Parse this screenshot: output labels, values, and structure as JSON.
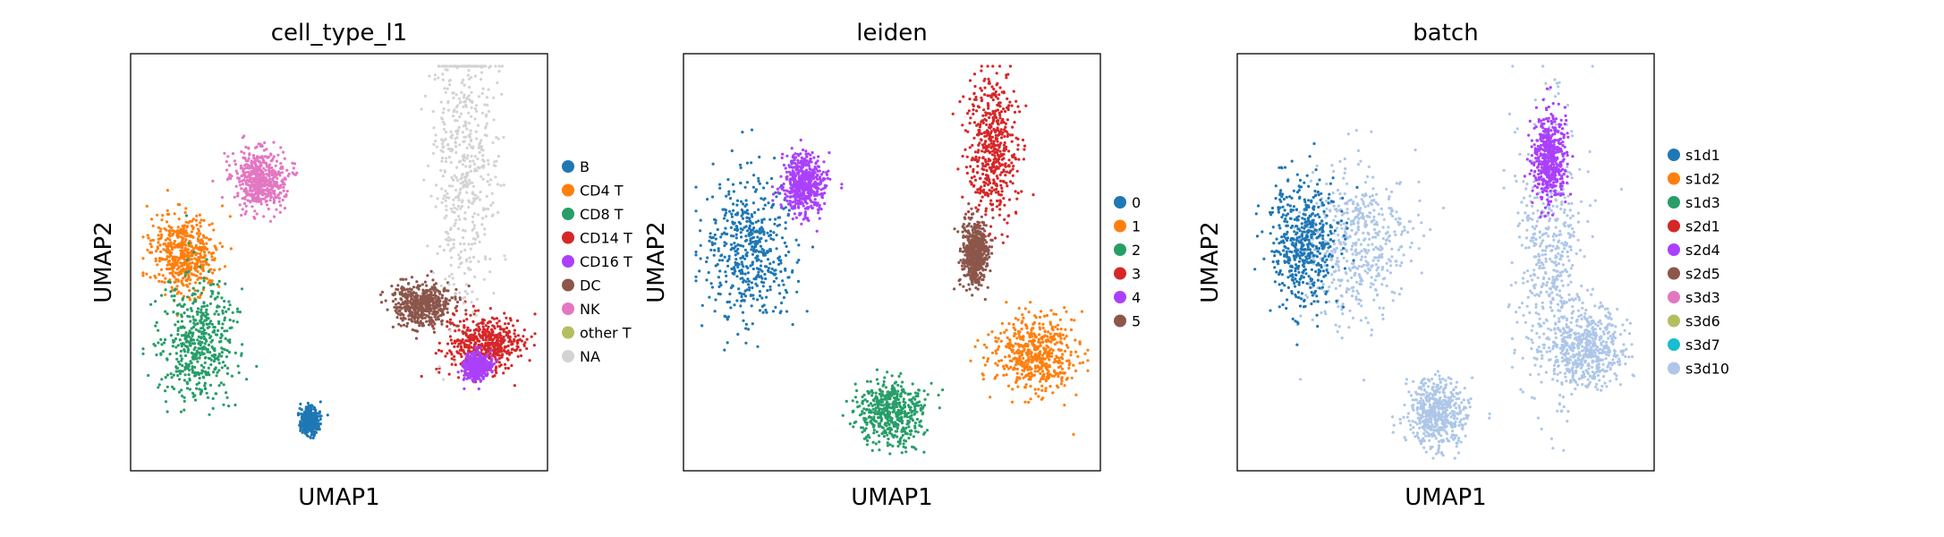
{
  "panels": [
    {
      "title": "cell_type_l1",
      "xlabel": "UMAP1",
      "ylabel": "UMAP2",
      "legend": [
        {
          "label": "B",
          "color": "#1f77b4"
        },
        {
          "label": "CD4 T",
          "color": "#ff7f0e"
        },
        {
          "label": "CD8 T",
          "color": "#279e68"
        },
        {
          "label": "CD14 T",
          "color": "#d62728"
        },
        {
          "label": "CD16 T",
          "color": "#aa40fc"
        },
        {
          "label": "DC",
          "color": "#8c564b"
        },
        {
          "label": "NK",
          "color": "#e377c2"
        },
        {
          "label": "other T",
          "color": "#b5bd61"
        },
        {
          "label": "NA",
          "color": "#d3d3d3"
        }
      ]
    },
    {
      "title": "leiden",
      "xlabel": "UMAP1",
      "ylabel": "UMAP2",
      "legend": [
        {
          "label": "0",
          "color": "#1f77b4"
        },
        {
          "label": "1",
          "color": "#ff7f0e"
        },
        {
          "label": "2",
          "color": "#279e68"
        },
        {
          "label": "3",
          "color": "#d62728"
        },
        {
          "label": "4",
          "color": "#aa40fc"
        },
        {
          "label": "5",
          "color": "#8c564b"
        }
      ]
    },
    {
      "title": "batch",
      "xlabel": "UMAP1",
      "ylabel": "UMAP2",
      "legend": [
        {
          "label": "s1d1",
          "color": "#1f77b4"
        },
        {
          "label": "s1d2",
          "color": "#ff7f0e"
        },
        {
          "label": "s1d3",
          "color": "#279e68"
        },
        {
          "label": "s2d1",
          "color": "#d62728"
        },
        {
          "label": "s2d4",
          "color": "#aa40fc"
        },
        {
          "label": "s2d5",
          "color": "#8c564b"
        },
        {
          "label": "s3d3",
          "color": "#e377c2"
        },
        {
          "label": "s3d6",
          "color": "#b5bd61"
        },
        {
          "label": "s3d7",
          "color": "#17becf"
        },
        {
          "label": "s3d10",
          "color": "#aec7e8"
        }
      ]
    }
  ],
  "chart_data": [
    {
      "type": "scatter",
      "title": "cell_type_l1",
      "xlabel": "UMAP1",
      "ylabel": "UMAP2",
      "grid": false,
      "legend_position": "right",
      "axis_ticks": "none",
      "categories": [
        "B",
        "CD4 T",
        "CD8 T",
        "CD14 T",
        "CD16 T",
        "DC",
        "NK",
        "other T",
        "NA"
      ],
      "clusters": [
        {
          "category": "CD4 T",
          "center": [
            0.13,
            0.48
          ],
          "spread": [
            0.08,
            0.09
          ]
        },
        {
          "category": "CD8 T",
          "center": [
            0.16,
            0.69
          ],
          "spread": [
            0.09,
            0.15
          ]
        },
        {
          "category": "NK",
          "center": [
            0.31,
            0.3
          ],
          "spread": [
            0.06,
            0.07
          ]
        },
        {
          "category": "CD14 T",
          "center": [
            0.85,
            0.7
          ],
          "spread": [
            0.09,
            0.07
          ]
        },
        {
          "category": "CD16 T",
          "center": [
            0.83,
            0.75
          ],
          "spread": [
            0.03,
            0.03
          ]
        },
        {
          "category": "DC",
          "center": [
            0.7,
            0.6
          ],
          "spread": [
            0.07,
            0.05
          ]
        },
        {
          "category": "B",
          "center": [
            0.43,
            0.88
          ],
          "spread": [
            0.02,
            0.03
          ]
        },
        {
          "category": "NA",
          "center": [
            0.8,
            0.25
          ],
          "spread": [
            0.08,
            0.35
          ]
        }
      ]
    },
    {
      "type": "scatter",
      "title": "leiden",
      "xlabel": "UMAP1",
      "ylabel": "UMAP2",
      "grid": false,
      "legend_position": "right",
      "axis_ticks": "none",
      "categories": [
        "0",
        "1",
        "2",
        "3",
        "4",
        "5"
      ],
      "clusters": [
        {
          "category": "0",
          "center": [
            0.16,
            0.47
          ],
          "spread": [
            0.11,
            0.17
          ]
        },
        {
          "category": "4",
          "center": [
            0.29,
            0.31
          ],
          "spread": [
            0.05,
            0.07
          ]
        },
        {
          "category": "3",
          "center": [
            0.74,
            0.23
          ],
          "spread": [
            0.06,
            0.18
          ]
        },
        {
          "category": "1",
          "center": [
            0.84,
            0.72
          ],
          "spread": [
            0.1,
            0.09
          ]
        },
        {
          "category": "2",
          "center": [
            0.5,
            0.86
          ],
          "spread": [
            0.08,
            0.08
          ]
        },
        {
          "category": "5",
          "center": [
            0.7,
            0.48
          ],
          "spread": [
            0.03,
            0.08
          ]
        }
      ]
    },
    {
      "type": "scatter",
      "title": "batch",
      "xlabel": "UMAP1",
      "ylabel": "UMAP2",
      "grid": false,
      "legend_position": "right",
      "axis_ticks": "none",
      "categories": [
        "s1d1",
        "s1d2",
        "s1d3",
        "s2d1",
        "s2d4",
        "s2d5",
        "s3d3",
        "s3d6",
        "s3d7",
        "s3d10"
      ],
      "clusters": [
        {
          "category": "s3d10",
          "center": [
            0.28,
            0.46
          ],
          "spread": [
            0.13,
            0.18
          ]
        },
        {
          "category": "s1d1",
          "center": [
            0.16,
            0.45
          ],
          "spread": [
            0.08,
            0.15
          ]
        },
        {
          "category": "s3d10",
          "center": [
            0.75,
            0.48
          ],
          "spread": [
            0.08,
            0.34
          ]
        },
        {
          "category": "s3d10",
          "center": [
            0.84,
            0.71
          ],
          "spread": [
            0.09,
            0.09
          ]
        },
        {
          "category": "s2d4",
          "center": [
            0.75,
            0.25
          ],
          "spread": [
            0.04,
            0.1
          ]
        },
        {
          "category": "s3d10",
          "center": [
            0.48,
            0.86
          ],
          "spread": [
            0.07,
            0.08
          ]
        }
      ]
    }
  ]
}
